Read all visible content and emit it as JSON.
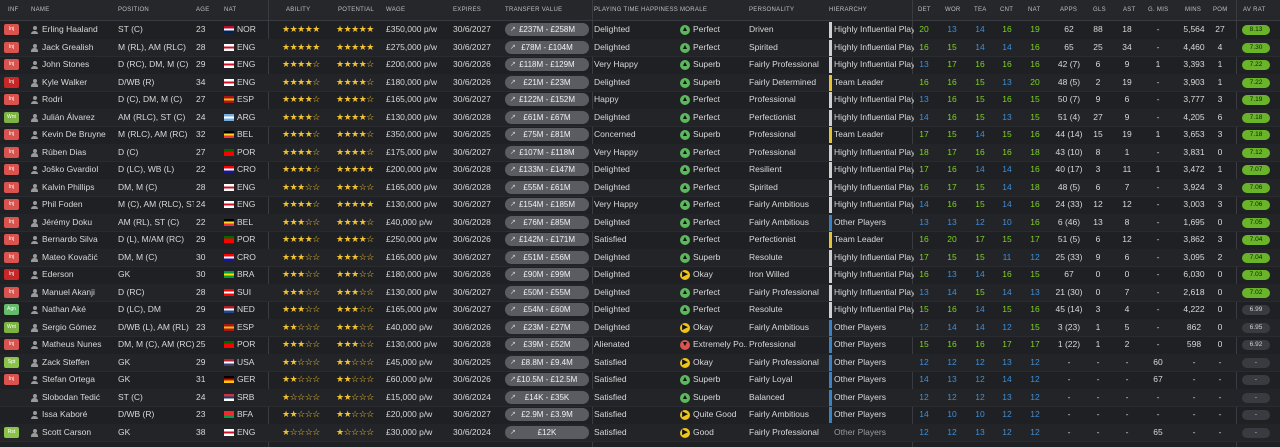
{
  "headers": {
    "inf": "INF",
    "name": "NAME",
    "position": "POSITION",
    "age": "AGE",
    "nat": "NAT",
    "ability": "ABILITY",
    "potential": "POTENTIAL",
    "wage": "WAGE",
    "expires": "EXPIRES",
    "transfer_value": "TRANSFER VALUE",
    "playing_time": "PLAYING TIME HAPPINESS",
    "morale": "MORALE",
    "personality": "PERSONALITY",
    "hierarchy": "HIERARCHY",
    "det": "DET",
    "wor": "WOR",
    "tea": "TEA",
    "cnt": "CNT",
    "nat2": "NAT",
    "apps": "APPS",
    "gls": "GLS",
    "ast": "AST",
    "gmis": "G. MIS",
    "mins": "MINS",
    "pom": "POM",
    "avrat": "AV RAT"
  },
  "colors": {
    "inf_injured": "#d9534f",
    "inf_wnt": "#7cb342",
    "inf_agn": "#66bb6a",
    "inf_spt": "#8bc34a",
    "hier_leader": "#e5c33b",
    "hier_influential": "#d0d0d0",
    "hier_other": "#3b82c4",
    "star": "#f1c232",
    "stat_green": "#7ed321",
    "stat_blue": "#3d8fd9",
    "avrat_green": "#6ab42a"
  },
  "players": [
    {
      "inf": "Inj",
      "inf_color": "#d9534f",
      "name": "Erling Haaland",
      "position": "ST (C)",
      "age": "23",
      "nat": "NOR",
      "flag": "nor",
      "ability": "★★★★★",
      "potential": "★★★★★",
      "wage": "£350,000 p/w",
      "expires": "30/6/2027",
      "tv": "£237M - £258M",
      "pt": "Delighted",
      "mood": "happy",
      "morale": "Perfect",
      "personality": "Driven",
      "hier": "Highly Influential Player",
      "hier_color": "#d0d0d0",
      "det": "20",
      "wor": "13",
      "tea": "14",
      "cnt": "16",
      "nat2": "19",
      "apps": "62",
      "gls": "88",
      "ast": "18",
      "gmis": "-",
      "mins": "5,564",
      "pom": "27",
      "avrat": "8.13",
      "avrat_color": "#6ab42a"
    },
    {
      "inf": "Inj",
      "inf_color": "#d9534f",
      "name": "Jack Grealish",
      "position": "M (RL), AM (RLC)",
      "age": "28",
      "nat": "ENG",
      "flag": "eng",
      "ability": "★★★★★",
      "potential": "★★★★★",
      "wage": "£275,000 p/w",
      "expires": "30/6/2027",
      "tv": "£78M - £104M",
      "pt": "Delighted",
      "mood": "happy",
      "morale": "Perfect",
      "personality": "Spirited",
      "hier": "Highly Influential Player",
      "hier_color": "#d0d0d0",
      "det": "16",
      "wor": "15",
      "tea": "14",
      "cnt": "14",
      "nat2": "16",
      "apps": "65",
      "gls": "25",
      "ast": "34",
      "gmis": "-",
      "mins": "4,460",
      "pom": "4",
      "avrat": "7.30",
      "avrat_color": "#6ab42a"
    },
    {
      "inf": "Inj",
      "inf_color": "#d9534f",
      "name": "John Stones",
      "position": "D (RC), DM, M (C)",
      "age": "29",
      "nat": "ENG",
      "flag": "eng",
      "ability": "★★★★☆",
      "potential": "★★★★☆",
      "wage": "£200,000 p/w",
      "expires": "30/6/2026",
      "tv": "£118M - £129M",
      "pt": "Very Happy",
      "mood": "happy",
      "morale": "Superb",
      "personality": "Fairly Professional",
      "hier": "Highly Influential Player",
      "hier_color": "#d0d0d0",
      "det": "13",
      "wor": "17",
      "tea": "16",
      "cnt": "16",
      "nat2": "16",
      "apps": "42 (7)",
      "gls": "6",
      "ast": "9",
      "gmis": "1",
      "mins": "3,393",
      "pom": "1",
      "avrat": "7.22",
      "avrat_color": "#6ab42a"
    },
    {
      "inf": "Inj",
      "inf_color": "#c62828",
      "name": "Kyle Walker",
      "position": "D/WB (R)",
      "age": "34",
      "nat": "ENG",
      "flag": "eng",
      "ability": "★★★★☆",
      "potential": "★★★★☆",
      "wage": "£180,000 p/w",
      "expires": "30/6/2026",
      "tv": "£21M - £23M",
      "pt": "Delighted",
      "mood": "happy",
      "morale": "Superb",
      "personality": "Fairly Determined",
      "hier": "Team Leader",
      "hier_color": "#e5c33b",
      "det": "16",
      "wor": "16",
      "tea": "15",
      "cnt": "13",
      "nat2": "20",
      "apps": "48 (5)",
      "gls": "2",
      "ast": "19",
      "gmis": "-",
      "mins": "3,903",
      "pom": "1",
      "avrat": "7.22",
      "avrat_color": "#6ab42a"
    },
    {
      "inf": "Inj",
      "inf_color": "#d9534f",
      "name": "Rodri",
      "position": "D (C), DM, M (C)",
      "age": "27",
      "nat": "ESP",
      "flag": "esp",
      "ability": "★★★★☆",
      "potential": "★★★★☆",
      "wage": "£165,000 p/w",
      "expires": "30/6/2027",
      "tv": "£122M - £152M",
      "pt": "Happy",
      "mood": "happy",
      "morale": "Perfect",
      "personality": "Professional",
      "hier": "Highly Influential Player",
      "hier_color": "#d0d0d0",
      "det": "13",
      "wor": "16",
      "tea": "15",
      "cnt": "16",
      "nat2": "15",
      "apps": "50 (7)",
      "gls": "9",
      "ast": "6",
      "gmis": "-",
      "mins": "3,777",
      "pom": "3",
      "avrat": "7.19",
      "avrat_color": "#6ab42a"
    },
    {
      "inf": "Wnt",
      "inf_color": "#7cb342",
      "name": "Julián Álvarez",
      "position": "AM (RLC), ST (C)",
      "age": "24",
      "nat": "ARG",
      "flag": "arg",
      "ability": "★★★★☆",
      "potential": "★★★★☆",
      "wage": "£130,000 p/w",
      "expires": "30/6/2028",
      "tv": "£61M - £67M",
      "pt": "Delighted",
      "mood": "happy",
      "morale": "Perfect",
      "personality": "Perfectionist",
      "hier": "Highly Influential Player",
      "hier_color": "#d0d0d0",
      "det": "14",
      "wor": "16",
      "tea": "15",
      "cnt": "13",
      "nat2": "15",
      "apps": "51 (4)",
      "gls": "27",
      "ast": "9",
      "gmis": "-",
      "mins": "4,205",
      "pom": "6",
      "avrat": "7.18",
      "avrat_color": "#6ab42a"
    },
    {
      "inf": "Inj",
      "inf_color": "#d9534f",
      "name": "Kevin De Bruyne",
      "position": "M (RLC), AM (RC)",
      "age": "32",
      "nat": "BEL",
      "flag": "bel",
      "ability": "★★★★☆",
      "potential": "★★★★☆",
      "wage": "£350,000 p/w",
      "expires": "30/6/2025",
      "tv": "£75M - £81M",
      "pt": "Concerned",
      "mood": "happy",
      "morale": "Superb",
      "personality": "Professional",
      "hier": "Team Leader",
      "hier_color": "#e5c33b",
      "det": "17",
      "wor": "15",
      "tea": "14",
      "cnt": "15",
      "nat2": "16",
      "apps": "44 (14)",
      "gls": "15",
      "ast": "19",
      "gmis": "1",
      "mins": "3,653",
      "pom": "3",
      "avrat": "7.18",
      "avrat_color": "#6ab42a"
    },
    {
      "inf": "Inj",
      "inf_color": "#d9534f",
      "name": "Rúben Dias",
      "position": "D (C)",
      "age": "27",
      "nat": "POR",
      "flag": "por",
      "ability": "★★★★☆",
      "potential": "★★★★☆",
      "wage": "£175,000 p/w",
      "expires": "30/6/2027",
      "tv": "£107M - £118M",
      "pt": "Very Happy",
      "mood": "happy",
      "morale": "Perfect",
      "personality": "Professional",
      "hier": "Highly Influential Player",
      "hier_color": "#d0d0d0",
      "det": "18",
      "wor": "17",
      "tea": "16",
      "cnt": "16",
      "nat2": "18",
      "apps": "43 (10)",
      "gls": "8",
      "ast": "1",
      "gmis": "-",
      "mins": "3,831",
      "pom": "0",
      "avrat": "7.12",
      "avrat_color": "#6ab42a"
    },
    {
      "inf": "Inj",
      "inf_color": "#d9534f",
      "name": "Joško Gvardiol",
      "position": "D (LC), WB (L)",
      "age": "22",
      "nat": "CRO",
      "flag": "cro",
      "ability": "★★★★☆",
      "potential": "★★★★★",
      "wage": "£200,000 p/w",
      "expires": "30/6/2028",
      "tv": "£133M - £147M",
      "pt": "Delighted",
      "mood": "happy",
      "morale": "Perfect",
      "personality": "Resilient",
      "hier": "Highly Influential Player",
      "hier_color": "#d0d0d0",
      "det": "17",
      "wor": "16",
      "tea": "14",
      "cnt": "14",
      "nat2": "16",
      "apps": "40 (17)",
      "gls": "3",
      "ast": "11",
      "gmis": "1",
      "mins": "3,472",
      "pom": "1",
      "avrat": "7.07",
      "avrat_color": "#6ab42a"
    },
    {
      "inf": "Inj",
      "inf_color": "#d9534f",
      "name": "Kalvin Phillips",
      "position": "DM, M (C)",
      "age": "28",
      "nat": "ENG",
      "flag": "eng",
      "ability": "★★★☆☆",
      "potential": "★★★☆☆",
      "wage": "£165,000 p/w",
      "expires": "30/6/2028",
      "tv": "£55M - £61M",
      "pt": "Delighted",
      "mood": "happy",
      "morale": "Perfect",
      "personality": "Spirited",
      "hier": "Highly Influential Player",
      "hier_color": "#d0d0d0",
      "det": "16",
      "wor": "17",
      "tea": "15",
      "cnt": "14",
      "nat2": "18",
      "apps": "48 (5)",
      "gls": "6",
      "ast": "7",
      "gmis": "-",
      "mins": "3,924",
      "pom": "3",
      "avrat": "7.06",
      "avrat_color": "#6ab42a"
    },
    {
      "inf": "Inj",
      "inf_color": "#d9534f",
      "name": "Phil Foden",
      "position": "M (C), AM (RLC), ST (C)",
      "age": "24",
      "nat": "ENG",
      "flag": "eng",
      "ability": "★★★★☆",
      "potential": "★★★★★",
      "wage": "£130,000 p/w",
      "expires": "30/6/2027",
      "tv": "£154M - £185M",
      "pt": "Very Happy",
      "mood": "happy",
      "morale": "Perfect",
      "personality": "Fairly Ambitious",
      "hier": "Highly Influential Player",
      "hier_color": "#d0d0d0",
      "det": "14",
      "wor": "16",
      "tea": "15",
      "cnt": "14",
      "nat2": "16",
      "apps": "24 (33)",
      "gls": "12",
      "ast": "12",
      "gmis": "-",
      "mins": "3,003",
      "pom": "3",
      "avrat": "7.06",
      "avrat_color": "#6ab42a"
    },
    {
      "inf": "Inj",
      "inf_color": "#d9534f",
      "name": "Jérémy Doku",
      "position": "AM (RL), ST (C)",
      "age": "22",
      "nat": "BEL",
      "flag": "bel",
      "ability": "★★★☆☆",
      "potential": "★★★★☆",
      "wage": "£40,000 p/w",
      "expires": "30/6/2028",
      "tv": "£76M - £85M",
      "pt": "Delighted",
      "mood": "happy",
      "morale": "Perfect",
      "personality": "Fairly Ambitious",
      "hier": "Other Players",
      "hier_color": "#3b82c4",
      "det": "13",
      "wor": "13",
      "tea": "12",
      "cnt": "10",
      "nat2": "16",
      "apps": "6 (46)",
      "gls": "13",
      "ast": "8",
      "gmis": "-",
      "mins": "1,695",
      "pom": "0",
      "avrat": "7.05",
      "avrat_color": "#6ab42a"
    },
    {
      "inf": "Inj",
      "inf_color": "#d9534f",
      "name": "Bernardo Silva",
      "position": "D (L), M/AM (RC)",
      "age": "29",
      "nat": "POR",
      "flag": "por",
      "ability": "★★★★☆",
      "potential": "★★★★☆",
      "wage": "£250,000 p/w",
      "expires": "30/6/2026",
      "tv": "£142M - £171M",
      "pt": "Satisfied",
      "mood": "happy",
      "morale": "Perfect",
      "personality": "Perfectionist",
      "hier": "Team Leader",
      "hier_color": "#e5c33b",
      "det": "16",
      "wor": "20",
      "tea": "17",
      "cnt": "15",
      "nat2": "17",
      "apps": "51 (5)",
      "gls": "6",
      "ast": "12",
      "gmis": "-",
      "mins": "3,862",
      "pom": "3",
      "avrat": "7.04",
      "avrat_color": "#6ab42a"
    },
    {
      "inf": "Inj",
      "inf_color": "#d9534f",
      "name": "Mateo Kovačić",
      "position": "DM, M (C)",
      "age": "30",
      "nat": "CRO",
      "flag": "cro",
      "ability": "★★★☆☆",
      "potential": "★★★☆☆",
      "wage": "£165,000 p/w",
      "expires": "30/6/2027",
      "tv": "£51M - £56M",
      "pt": "Delighted",
      "mood": "happy",
      "morale": "Superb",
      "personality": "Resolute",
      "hier": "Highly Influential Player",
      "hier_color": "#d0d0d0",
      "det": "17",
      "wor": "15",
      "tea": "15",
      "cnt": "11",
      "nat2": "12",
      "apps": "25 (33)",
      "gls": "9",
      "ast": "6",
      "gmis": "-",
      "mins": "3,095",
      "pom": "2",
      "avrat": "7.04",
      "avrat_color": "#6ab42a"
    },
    {
      "inf": "Inj",
      "inf_color": "#c62828",
      "name": "Ederson",
      "position": "GK",
      "age": "30",
      "nat": "BRA",
      "flag": "bra",
      "ability": "★★★☆☆",
      "potential": "★★★☆☆",
      "wage": "£180,000 p/w",
      "expires": "30/6/2026",
      "tv": "£90M - £99M",
      "pt": "Delighted",
      "mood": "okay",
      "morale": "Okay",
      "personality": "Iron Willed",
      "hier": "Highly Influential Player",
      "hier_color": "#d0d0d0",
      "det": "16",
      "wor": "13",
      "tea": "14",
      "cnt": "16",
      "nat2": "15",
      "apps": "67",
      "gls": "0",
      "ast": "0",
      "gmis": "-",
      "mins": "6,030",
      "pom": "0",
      "avrat": "7.03",
      "avrat_color": "#6ab42a"
    },
    {
      "inf": "Inj",
      "inf_color": "#d9534f",
      "name": "Manuel Akanji",
      "position": "D (RC)",
      "age": "28",
      "nat": "SUI",
      "flag": "sui",
      "ability": "★★★☆☆",
      "potential": "★★★☆☆",
      "wage": "£130,000 p/w",
      "expires": "30/6/2027",
      "tv": "£50M - £55M",
      "pt": "Delighted",
      "mood": "happy",
      "morale": "Perfect",
      "personality": "Fairly Professional",
      "hier": "Highly Influential Player",
      "hier_color": "#d0d0d0",
      "det": "13",
      "wor": "14",
      "tea": "15",
      "cnt": "14",
      "nat2": "13",
      "apps": "21 (30)",
      "gls": "0",
      "ast": "7",
      "gmis": "-",
      "mins": "2,618",
      "pom": "0",
      "avrat": "7.02",
      "avrat_color": "#6ab42a"
    },
    {
      "inf": "Agn",
      "inf_color": "#66bb6a",
      "name": "Nathan Aké",
      "position": "D (LC), DM",
      "age": "29",
      "nat": "NED",
      "flag": "ned",
      "ability": "★★★☆☆",
      "potential": "★★★☆☆",
      "wage": "£165,000 p/w",
      "expires": "30/6/2027",
      "tv": "£54M - £60M",
      "pt": "Delighted",
      "mood": "happy",
      "morale": "Perfect",
      "personality": "Resolute",
      "hier": "Highly Influential Player",
      "hier_color": "#d0d0d0",
      "det": "15",
      "wor": "16",
      "tea": "14",
      "cnt": "15",
      "nat2": "16",
      "apps": "45 (14)",
      "gls": "3",
      "ast": "4",
      "gmis": "-",
      "mins": "4,222",
      "pom": "0",
      "avrat": "6.99",
      "avrat_color": "#3a3b40"
    },
    {
      "inf": "Wnt",
      "inf_color": "#7cb342",
      "name": "Sergio Gómez",
      "position": "D/WB (L), AM (RL)",
      "age": "23",
      "nat": "ESP",
      "flag": "esp",
      "ability": "★★☆☆☆",
      "potential": "★★★☆☆",
      "wage": "£40,000 p/w",
      "expires": "30/6/2026",
      "tv": "£23M - £27M",
      "pt": "Delighted",
      "mood": "okay",
      "morale": "Okay",
      "personality": "Fairly Ambitious",
      "hier": "Other Players",
      "hier_color": "#3b82c4",
      "det": "12",
      "wor": "14",
      "tea": "14",
      "cnt": "12",
      "nat2": "15",
      "apps": "3 (23)",
      "gls": "1",
      "ast": "5",
      "gmis": "-",
      "mins": "862",
      "pom": "0",
      "avrat": "6.95",
      "avrat_color": "#3a3b40"
    },
    {
      "inf": "Inj",
      "inf_color": "#d9534f",
      "name": "Matheus Nunes",
      "position": "DM, M (C), AM (RC)",
      "age": "25",
      "nat": "POR",
      "flag": "por",
      "ability": "★★★☆☆",
      "potential": "★★★☆☆",
      "wage": "£130,000 p/w",
      "expires": "30/6/2028",
      "tv": "£39M - £52M",
      "pt": "Alienated",
      "mood": "bad",
      "morale": "Extremely Po...",
      "personality": "Professional",
      "hier": "Other Players",
      "hier_color": "#3b82c4",
      "det": "15",
      "wor": "16",
      "tea": "16",
      "cnt": "17",
      "nat2": "17",
      "apps": "1 (22)",
      "gls": "1",
      "ast": "2",
      "gmis": "-",
      "mins": "598",
      "pom": "0",
      "avrat": "6.92",
      "avrat_color": "#3a3b40"
    },
    {
      "inf": "Spt",
      "inf_color": "#8bc34a",
      "name": "Zack Steffen",
      "position": "GK",
      "age": "29",
      "nat": "USA",
      "flag": "usa",
      "ability": "★★☆☆☆",
      "potential": "★★☆☆☆",
      "wage": "£45,000 p/w",
      "expires": "30/6/2025",
      "tv": "£8.8M - £9.4M",
      "pt": "Satisfied",
      "mood": "okay",
      "morale": "Okay",
      "personality": "Fairly Professional",
      "hier": "Other Players",
      "hier_color": "#3b82c4",
      "det": "12",
      "wor": "12",
      "tea": "12",
      "cnt": "13",
      "nat2": "12",
      "apps": "-",
      "gls": "-",
      "ast": "-",
      "gmis": "60",
      "mins": "-",
      "pom": "-",
      "avrat": "-",
      "avrat_color": "#3a3b40"
    },
    {
      "inf": "Inj",
      "inf_color": "#d9534f",
      "name": "Stefan Ortega",
      "position": "GK",
      "age": "31",
      "nat": "GER",
      "flag": "ger",
      "ability": "★★☆☆☆",
      "potential": "★★☆☆☆",
      "wage": "£60,000 p/w",
      "expires": "30/6/2026",
      "tv": "£10.5M - £12.5M",
      "pt": "Satisfied",
      "mood": "happy",
      "morale": "Superb",
      "personality": "Fairly Loyal",
      "hier": "Other Players",
      "hier_color": "#3b82c4",
      "det": "14",
      "wor": "13",
      "tea": "12",
      "cnt": "14",
      "nat2": "12",
      "apps": "-",
      "gls": "-",
      "ast": "-",
      "gmis": "67",
      "mins": "-",
      "pom": "-",
      "avrat": "-",
      "avrat_color": "#3a3b40"
    },
    {
      "inf": "",
      "inf_color": "transparent",
      "name": "Slobodan Tedić",
      "position": "ST (C)",
      "age": "24",
      "nat": "SRB",
      "flag": "srb",
      "ability": "★☆☆☆☆",
      "potential": "★★☆☆☆",
      "wage": "£15,000 p/w",
      "expires": "30/6/2024",
      "tv": "£14K - £35K",
      "pt": "Satisfied",
      "mood": "happy",
      "morale": "Superb",
      "personality": "Balanced",
      "hier": "Other Players",
      "hier_color": "#3b82c4",
      "det": "12",
      "wor": "12",
      "tea": "12",
      "cnt": "13",
      "nat2": "12",
      "apps": "-",
      "gls": "-",
      "ast": "-",
      "gmis": "-",
      "mins": "-",
      "pom": "-",
      "avrat": "-",
      "avrat_color": "#3a3b40"
    },
    {
      "inf": "",
      "inf_color": "transparent",
      "name": "Issa Kaboré",
      "position": "D/WB (R)",
      "age": "23",
      "nat": "BFA",
      "flag": "bfa",
      "ability": "★★☆☆☆",
      "potential": "★★☆☆☆",
      "wage": "£20,000 p/w",
      "expires": "30/6/2027",
      "tv": "£2.9M - £3.9M",
      "pt": "Satisfied",
      "mood": "okay",
      "morale": "Quite Good",
      "personality": "Fairly Ambitious",
      "hier": "Other Players",
      "hier_color": "#3b82c4",
      "det": "14",
      "wor": "10",
      "tea": "10",
      "cnt": "12",
      "nat2": "12",
      "apps": "-",
      "gls": "-",
      "ast": "-",
      "gmis": "-",
      "mins": "-",
      "pom": "-",
      "avrat": "-",
      "avrat_color": "#3a3b40"
    },
    {
      "inf": "Rst",
      "inf_color": "#8bc34a",
      "name": "Scott Carson",
      "position": "GK",
      "age": "38",
      "nat": "ENG",
      "flag": "eng",
      "ability": "★☆☆☆☆",
      "potential": "★☆☆☆☆",
      "wage": "£30,000 p/w",
      "expires": "30/6/2024",
      "tv": "£12K",
      "pt": "Satisfied",
      "mood": "okay",
      "morale": "Good",
      "personality": "Fairly Professional",
      "hier": "Other Players",
      "hier_color": "transparent",
      "det": "12",
      "wor": "12",
      "tea": "13",
      "cnt": "12",
      "nat2": "12",
      "apps": "-",
      "gls": "-",
      "ast": "-",
      "gmis": "65",
      "mins": "-",
      "pom": "-",
      "avrat": "-",
      "avrat_color": "#3a3b40"
    }
  ]
}
